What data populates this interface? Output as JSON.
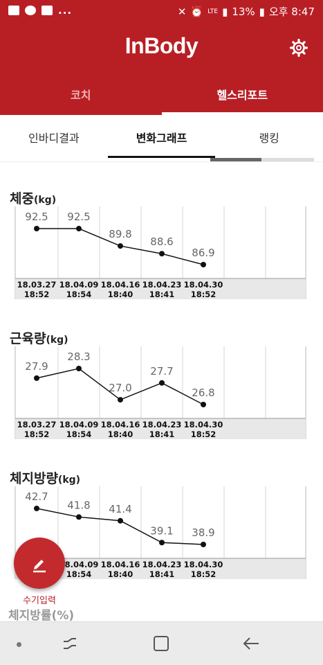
{
  "status_bar": {
    "left_icons": [
      "image-icon",
      "talk-icon",
      "message-icon"
    ],
    "more": "...",
    "battery": "13%",
    "network": "LTE",
    "time": "오후 8:47"
  },
  "app": {
    "logo": "InBody"
  },
  "main_tabs": [
    {
      "label": "코치",
      "active": false
    },
    {
      "label": "헬스리포트",
      "active": true
    }
  ],
  "sub_tabs": [
    {
      "label": "인바디결과",
      "active": false
    },
    {
      "label": "변화그래프",
      "active": true
    },
    {
      "label": "랭킹",
      "active": false
    }
  ],
  "sections": [
    {
      "title": "체중",
      "unit": "(kg)"
    },
    {
      "title": "근육량",
      "unit": "(kg)"
    },
    {
      "title": "체지방량",
      "unit": "(kg)"
    }
  ],
  "chart_data": [
    {
      "type": "line",
      "title": "체중(kg)",
      "categories": [
        [
          "18.03.27",
          "18:52"
        ],
        [
          "18.04.09",
          "18:54"
        ],
        [
          "18.04.16",
          "18:40"
        ],
        [
          "18.04.23",
          "18:41"
        ],
        [
          "18.04.30",
          "18:52"
        ]
      ],
      "values": [
        92.5,
        92.5,
        89.8,
        88.6,
        86.9
      ],
      "value_labels": [
        "92.5",
        "92.5",
        "89.8",
        "88.6",
        "86.9"
      ]
    },
    {
      "type": "line",
      "title": "근육량(kg)",
      "categories": [
        [
          "18.03.27",
          "18:52"
        ],
        [
          "18.04.09",
          "18:54"
        ],
        [
          "18.04.16",
          "18:40"
        ],
        [
          "18.04.23",
          "18:41"
        ],
        [
          "18.04.30",
          "18:52"
        ]
      ],
      "values": [
        27.9,
        28.3,
        27.0,
        27.7,
        26.8
      ],
      "value_labels": [
        "27.9",
        "28.3",
        "27.0",
        "27.7",
        "26.8"
      ]
    },
    {
      "type": "line",
      "title": "체지방량(kg)",
      "categories": [
        [
          "18.03.27",
          "18:52"
        ],
        [
          "18.04.09",
          "18:54"
        ],
        [
          "18.04.16",
          "18:40"
        ],
        [
          "18.04.23",
          "18:41"
        ],
        [
          "18.04.30",
          "18:52"
        ]
      ],
      "values": [
        42.7,
        41.8,
        41.4,
        39.1,
        38.9
      ],
      "value_labels": [
        "42.7",
        "41.8",
        "41.4",
        "39.1",
        "38.9"
      ]
    }
  ],
  "fab": {
    "label": "수기입력"
  },
  "partial_section": {
    "title": "체지방률(%)"
  },
  "colors": {
    "brand": "#b81f25",
    "fab": "#c22a2e"
  }
}
